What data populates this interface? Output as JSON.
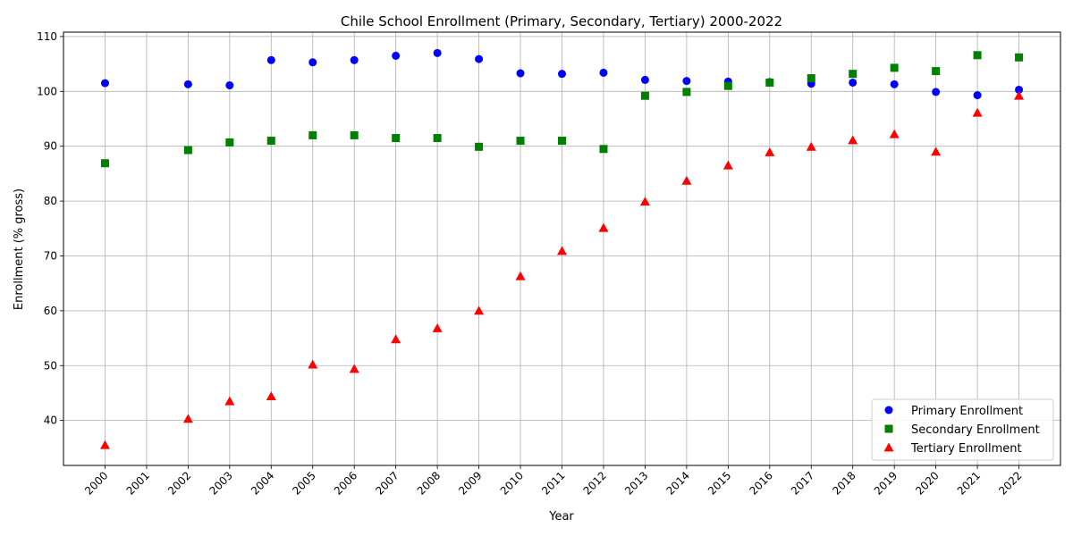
{
  "chart_data": {
    "type": "scatter",
    "title": "Chile School Enrollment (Primary, Secondary, Tertiary) 2000-2022",
    "xlabel": "Year",
    "ylabel": "Enrollment (% gross)",
    "x_ticks": [
      "2000",
      "2001",
      "2002",
      "2003",
      "2004",
      "2005",
      "2006",
      "2007",
      "2008",
      "2009",
      "2010",
      "2011",
      "2012",
      "2013",
      "2014",
      "2015",
      "2016",
      "2017",
      "2018",
      "2019",
      "2020",
      "2021",
      "2022"
    ],
    "y_ticks": [
      40,
      50,
      60,
      70,
      80,
      90,
      100,
      110
    ],
    "xlim": [
      1999,
      2023
    ],
    "ylim": [
      31.8,
      110.8
    ],
    "grid": true,
    "legend_position": "lower-right",
    "series": [
      {
        "name": "Primary Enrollment",
        "color": "#0000ff",
        "marker": "circle",
        "x": [
          2000,
          2002,
          2003,
          2004,
          2005,
          2006,
          2007,
          2008,
          2009,
          2010,
          2011,
          2012,
          2013,
          2014,
          2015,
          2016,
          2017,
          2018,
          2019,
          2020,
          2021,
          2022
        ],
        "values": [
          101.5,
          101.3,
          101.1,
          105.7,
          105.3,
          105.7,
          106.5,
          107.0,
          105.9,
          103.3,
          103.2,
          103.4,
          102.1,
          101.9,
          101.8,
          101.7,
          101.4,
          101.6,
          101.3,
          99.9,
          99.3,
          100.3
        ]
      },
      {
        "name": "Secondary Enrollment",
        "color": "#008000",
        "marker": "square",
        "x": [
          2000,
          2002,
          2003,
          2004,
          2005,
          2006,
          2007,
          2008,
          2009,
          2010,
          2011,
          2012,
          2013,
          2014,
          2015,
          2016,
          2017,
          2018,
          2019,
          2020,
          2021,
          2022
        ],
        "values": [
          86.9,
          89.3,
          90.7,
          91.0,
          92.0,
          92.0,
          91.5,
          91.5,
          89.9,
          91.0,
          91.0,
          89.5,
          99.2,
          99.9,
          101.0,
          101.6,
          102.4,
          103.2,
          104.3,
          103.7,
          106.6,
          106.2
        ]
      },
      {
        "name": "Tertiary Enrollment",
        "color": "#ff0000",
        "marker": "triangle",
        "x": [
          2000,
          2002,
          2003,
          2004,
          2005,
          2006,
          2007,
          2008,
          2009,
          2010,
          2011,
          2012,
          2013,
          2014,
          2015,
          2016,
          2017,
          2018,
          2019,
          2020,
          2021,
          2022
        ],
        "values": [
          35.5,
          40.3,
          43.5,
          44.4,
          50.2,
          49.4,
          54.8,
          56.8,
          60.0,
          66.3,
          70.9,
          75.1,
          79.9,
          83.7,
          86.5,
          88.9,
          89.9,
          91.1,
          92.2,
          89.0,
          96.1,
          99.2
        ]
      }
    ]
  }
}
